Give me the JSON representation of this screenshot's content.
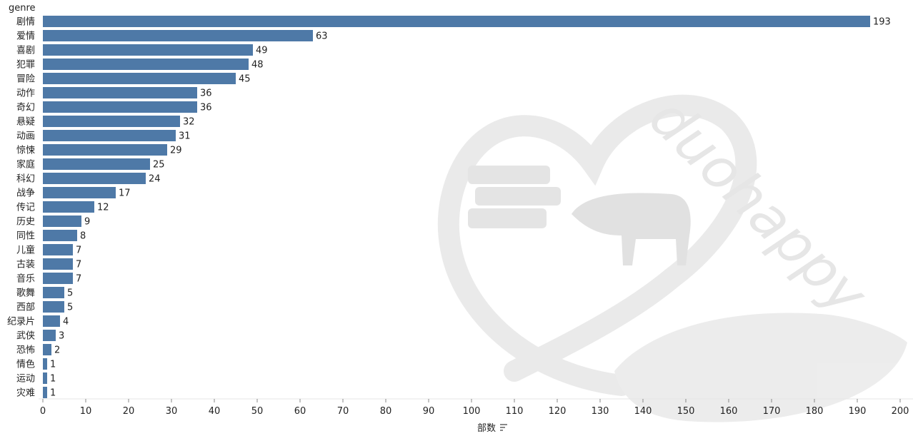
{
  "chart_data": {
    "type": "bar",
    "orientation": "horizontal",
    "ylabel": "genre",
    "xlabel": "部数",
    "xlim": [
      0,
      200
    ],
    "x_ticks": [
      0,
      10,
      20,
      30,
      40,
      50,
      60,
      70,
      80,
      90,
      100,
      110,
      120,
      130,
      140,
      150,
      160,
      170,
      180,
      190,
      200
    ],
    "bar_color": "#4e79a7",
    "categories": [
      "剧情",
      "爱情",
      "喜剧",
      "犯罪",
      "冒险",
      "动作",
      "奇幻",
      "悬疑",
      "动画",
      "惊悚",
      "家庭",
      "科幻",
      "战争",
      "传记",
      "历史",
      "同性",
      "儿童",
      "古装",
      "音乐",
      "歌舞",
      "西部",
      "纪录片",
      "武侠",
      "恐怖",
      "情色",
      "运动",
      "灾难"
    ],
    "values": [
      193,
      63,
      49,
      48,
      45,
      36,
      36,
      32,
      31,
      29,
      25,
      24,
      17,
      12,
      9,
      8,
      7,
      7,
      7,
      5,
      5,
      4,
      3,
      2,
      1,
      1,
      1
    ],
    "grid": false,
    "sort_icon": "sort-descending-icon"
  },
  "watermark": {
    "text": "duohappy"
  }
}
